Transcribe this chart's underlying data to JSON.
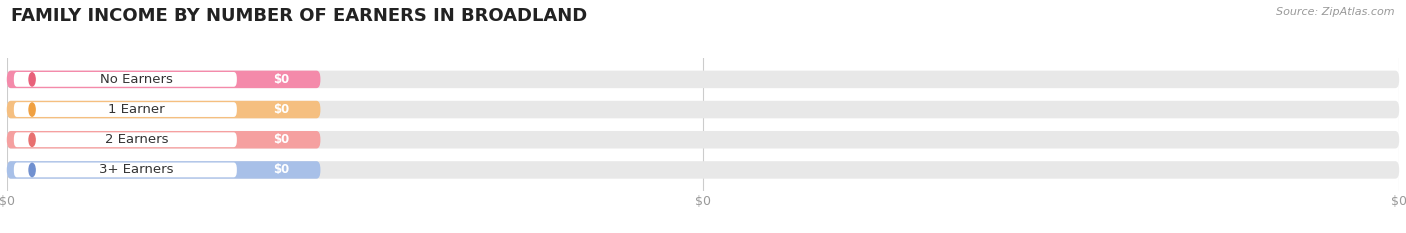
{
  "title": "FAMILY INCOME BY NUMBER OF EARNERS IN BROADLAND",
  "source": "Source: ZipAtlas.com",
  "categories": [
    "No Earners",
    "1 Earner",
    "2 Earners",
    "3+ Earners"
  ],
  "values": [
    0,
    0,
    0,
    0
  ],
  "bar_colors": [
    "#f48aaa",
    "#f5bf80",
    "#f5a0a0",
    "#a8c0e8"
  ],
  "dot_colors": [
    "#e8607a",
    "#f0a040",
    "#e87070",
    "#7090d0"
  ],
  "background_color": "#ffffff",
  "bar_bg_color": "#e8e8e8",
  "title_fontsize": 13,
  "source_fontsize": 8
}
